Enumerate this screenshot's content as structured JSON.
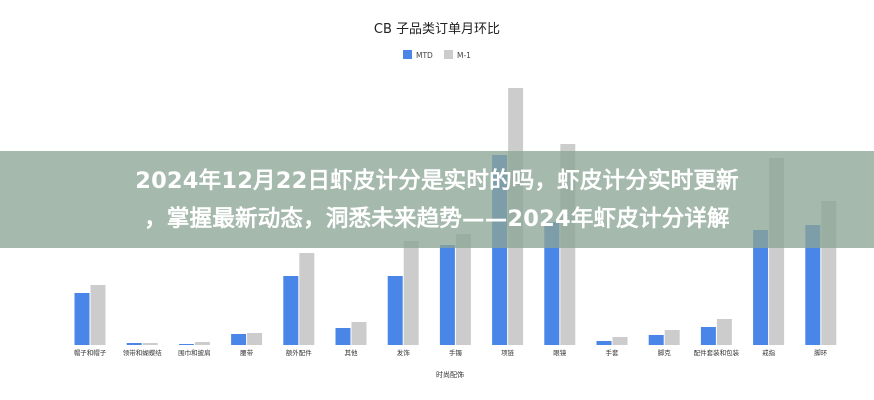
{
  "chart_data": {
    "type": "bar",
    "title": "CB 子品类订单月环比",
    "xlabel": "时尚配饰",
    "ylabel": "",
    "categories": [
      "帽子和帽子",
      "领带和蝴蝶结",
      "围巾和披肩",
      "腰带",
      "额外配件",
      "其他",
      "发饰",
      "手镯",
      "项链",
      "眼镜",
      "手套",
      "脚克",
      "配件套装和包装",
      "戒指",
      "脚环"
    ],
    "series": [
      {
        "name": "MTD",
        "color": "#4a86e8",
        "values": [
          52,
          2,
          1,
          11,
          69,
          17,
          69,
          100,
          190,
          123,
          4,
          10,
          18,
          115,
          120
        ]
      },
      {
        "name": "M-1",
        "color": "#cccccc",
        "values": [
          60,
          2,
          3,
          12,
          92,
          23,
          104,
          111,
          257,
          201,
          8,
          15,
          26,
          187,
          144
        ]
      }
    ],
    "ylim": [
      0,
      270
    ],
    "grid": false,
    "legend": "top-center"
  },
  "overlay": {
    "line1": "2024年12月22日虾皮计分是实时的吗，虾皮计分实时更新",
    "line2": "，掌握最新动态，洞悉未来趋势——2024年虾皮计分详解"
  }
}
